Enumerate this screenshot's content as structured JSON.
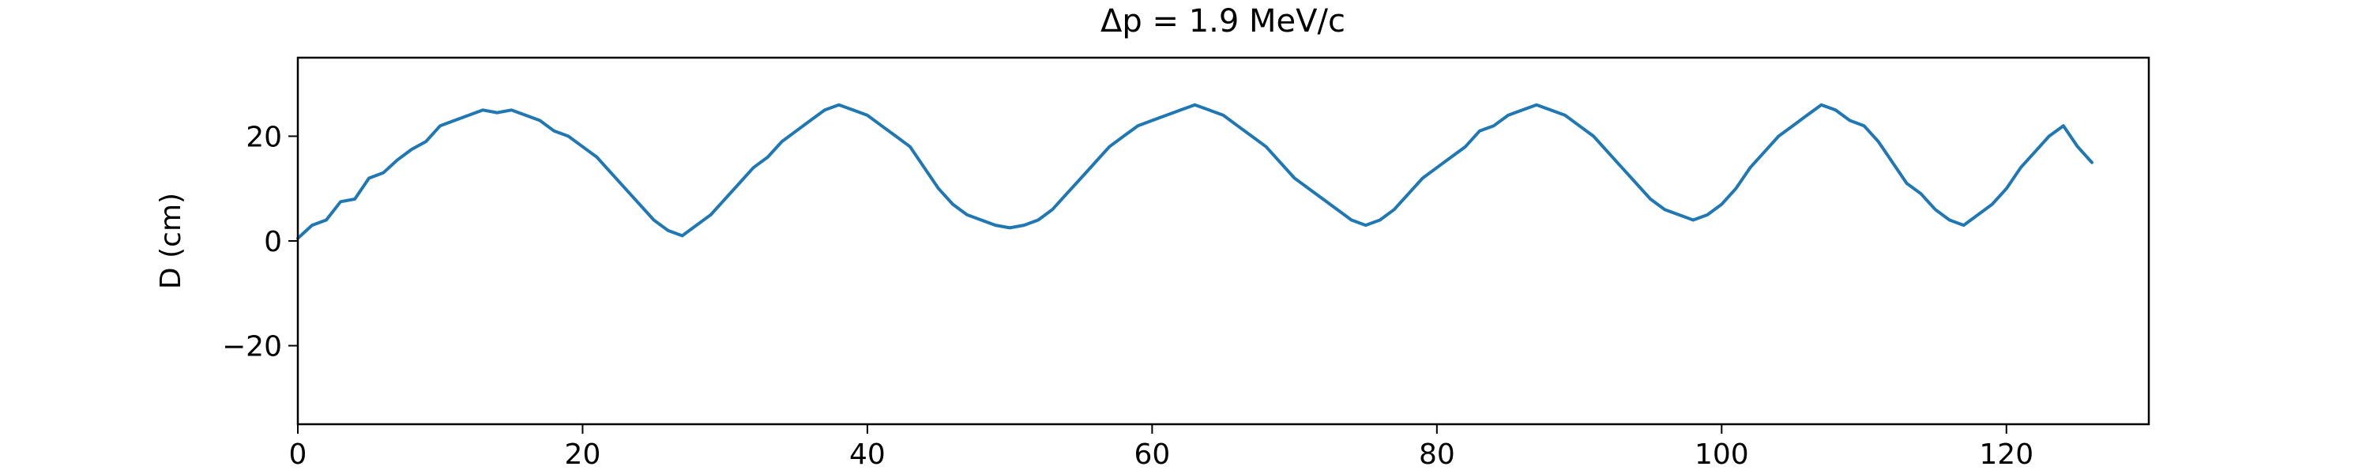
{
  "chart_data": {
    "type": "line",
    "title": "Δp = 1.9 MeV/c",
    "xlabel": "",
    "ylabel": "D (cm)",
    "xlim": [
      0,
      130
    ],
    "ylim": [
      -35,
      35
    ],
    "xticks": [
      0,
      20,
      40,
      60,
      80,
      100,
      120
    ],
    "yticks": [
      -20,
      0,
      20
    ],
    "xtick_labels": [
      "0",
      "20",
      "40",
      "60",
      "80",
      "100",
      "120"
    ],
    "ytick_labels": [
      "−20",
      "0",
      "20"
    ],
    "grid": false,
    "series": [
      {
        "color": "#1f77b4",
        "x": [
          0,
          1,
          2,
          3,
          4,
          5,
          6,
          7,
          8,
          9,
          10,
          11,
          12,
          13,
          14,
          15,
          16,
          17,
          18,
          19,
          20,
          21,
          22,
          23,
          24,
          25,
          26,
          27,
          28,
          29,
          30,
          31,
          32,
          33,
          34,
          35,
          36,
          37,
          38,
          39,
          40,
          41,
          42,
          43,
          44,
          45,
          46,
          47,
          48,
          49,
          50,
          51,
          52,
          53,
          54,
          55,
          56,
          57,
          58,
          59,
          60,
          61,
          62,
          63,
          64,
          65,
          66,
          67,
          68,
          69,
          70,
          71,
          72,
          73,
          74,
          75,
          76,
          77,
          78,
          79,
          80,
          81,
          82,
          83,
          84,
          85,
          86,
          87,
          88,
          89,
          90,
          91,
          92,
          93,
          94,
          95,
          96,
          97,
          98,
          99,
          100,
          101,
          102,
          103,
          104,
          105,
          106,
          107,
          108,
          109,
          110,
          111,
          112,
          113,
          114,
          115,
          116,
          117,
          118,
          119,
          120,
          121,
          122,
          123,
          124,
          125,
          126
        ],
        "y": [
          0.5,
          3,
          4,
          7.5,
          8,
          12,
          13,
          15.5,
          17.5,
          19,
          22,
          23,
          24,
          25,
          24.5,
          25,
          24,
          23,
          21,
          20,
          18,
          16,
          13,
          10,
          7,
          4,
          2,
          1,
          3,
          5,
          8,
          11,
          14,
          16,
          19,
          21,
          23,
          25,
          26,
          25,
          24,
          22,
          20,
          18,
          14,
          10,
          7,
          5,
          4,
          3,
          2.5,
          3,
          4,
          6,
          9,
          12,
          15,
          18,
          20,
          22,
          23,
          24,
          25,
          26,
          25,
          24,
          22,
          20,
          18,
          15,
          12,
          10,
          8,
          6,
          4,
          3,
          4,
          6,
          9,
          12,
          14,
          16,
          18,
          21,
          22,
          24,
          25,
          26,
          25,
          24,
          22,
          20,
          17,
          14,
          11,
          8,
          6,
          5,
          4,
          5,
          7,
          10,
          14,
          17,
          20,
          22,
          24,
          26,
          25,
          23,
          22,
          19,
          15,
          11,
          9,
          6,
          4,
          3,
          5,
          7,
          10,
          14,
          17,
          20,
          22,
          18,
          15
        ]
      }
    ]
  }
}
